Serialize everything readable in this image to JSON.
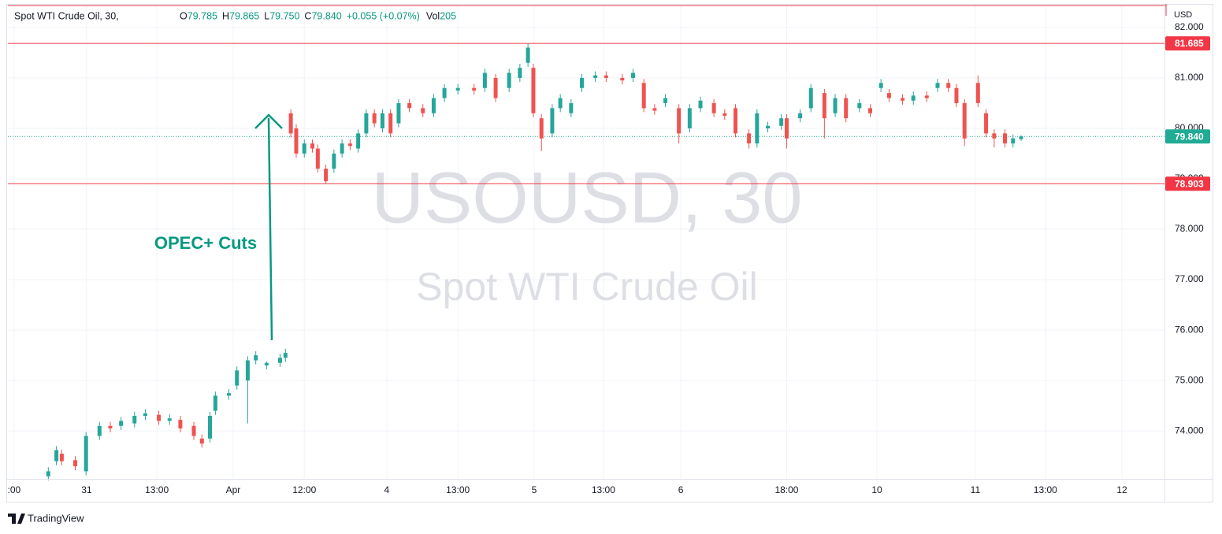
{
  "chart_data": {
    "type": "candlestick",
    "header": {
      "symbol": "Spot WTI Crude Oil, 30,",
      "fields": [
        {
          "label": "O",
          "value": "79.785"
        },
        {
          "label": "H",
          "value": "79.865"
        },
        {
          "label": "L",
          "value": "79.750"
        },
        {
          "label": "C",
          "value": "79.840"
        }
      ],
      "change": "+0.055 (+0.07%)",
      "volume_label": "Vol",
      "volume": "205"
    },
    "currency": "USD",
    "watermark": {
      "title": "USOUSD, 30",
      "subtitle": "Spot WTI Crude Oil"
    },
    "annotation": "OPEC+ Cuts",
    "branding": "TradingView",
    "up_color": "#26a69a",
    "down_color": "#ef5350",
    "grid": true,
    "xlim": [
      0,
      429.2
    ],
    "ylim": [
      73.05,
      82.42
    ],
    "xticks": [
      {
        "value": 2.3,
        "label": ":00"
      },
      {
        "value": 29.2,
        "label": "31"
      },
      {
        "value": 55.3,
        "label": "13:00"
      },
      {
        "value": 83.6,
        "label": "Apr"
      },
      {
        "value": 110,
        "label": "12:00"
      },
      {
        "value": 140.6,
        "label": "4"
      },
      {
        "value": 167,
        "label": "13:00"
      },
      {
        "value": 195.3,
        "label": "5"
      },
      {
        "value": 221,
        "label": "13:00"
      },
      {
        "value": 249.7,
        "label": "6"
      },
      {
        "value": 289,
        "label": "18:00"
      },
      {
        "value": 322.5,
        "label": "10"
      },
      {
        "value": 359,
        "label": "11"
      },
      {
        "value": 385,
        "label": "13:00"
      },
      {
        "value": 413.4,
        "label": "12"
      }
    ],
    "yticks": [
      {
        "value": 74,
        "label": "74.000"
      },
      {
        "value": 75,
        "label": "75.000"
      },
      {
        "value": 76,
        "label": "76.000"
      },
      {
        "value": 77,
        "label": "77.000"
      },
      {
        "value": 78,
        "label": "78.000"
      },
      {
        "value": 79,
        "label": "79.000"
      },
      {
        "value": 80,
        "label": "80.000"
      },
      {
        "value": 81,
        "label": "81.000"
      },
      {
        "value": 82,
        "label": "82.000"
      }
    ],
    "levels": [
      {
        "value": 81.685,
        "label": "81.685",
        "color": "#f23645",
        "style": "solid"
      },
      {
        "value": 78.903,
        "label": "78.903",
        "color": "#f23645",
        "style": "solid"
      },
      {
        "value": 79.84,
        "label": "79.840",
        "color": "#22ab94",
        "style": "dotted"
      }
    ],
    "x": [
      15,
      18,
      20,
      25,
      29,
      34,
      38,
      42,
      47,
      51,
      56,
      60,
      64,
      69,
      72,
      75,
      77,
      82,
      85,
      89,
      92,
      96,
      101,
      103,
      105,
      107,
      110,
      113,
      115,
      118,
      121,
      124,
      127,
      130,
      133,
      136,
      139,
      142,
      145,
      149,
      154,
      158,
      162,
      167,
      173,
      177,
      181,
      186,
      190,
      193,
      195,
      198,
      202,
      205,
      209,
      213,
      218,
      222,
      228,
      232,
      236,
      240,
      244,
      249,
      253,
      257,
      262,
      266,
      270,
      275,
      278,
      282,
      287,
      289,
      294,
      298,
      303,
      307,
      311,
      316,
      320,
      324,
      327,
      332,
      336,
      341,
      345,
      349,
      352,
      355,
      360,
      363,
      366,
      370,
      373,
      376
    ],
    "open": [
      73.1,
      73.4,
      73.55,
      73.42,
      73.2,
      73.9,
      74.1,
      74.1,
      74.15,
      74.3,
      74.32,
      74.2,
      74.22,
      74.1,
      73.85,
      73.85,
      74.4,
      74.7,
      74.9,
      75.0,
      75.4,
      75.3,
      75.35,
      75.45,
      80.3,
      80.0,
      79.5,
      79.7,
      79.6,
      79.2,
      79.2,
      79.5,
      79.7,
      79.6,
      79.9,
      80.3,
      80.0,
      80.3,
      80.1,
      80.5,
      80.4,
      80.3,
      80.6,
      80.75,
      80.8,
      80.8,
      81.0,
      80.8,
      81.0,
      81.3,
      81.2,
      80.2,
      79.9,
      80.4,
      80.3,
      80.8,
      81.0,
      81.05,
      81.0,
      81.0,
      80.9,
      80.4,
      80.5,
      80.4,
      80.0,
      80.4,
      80.5,
      80.3,
      80.4,
      79.9,
      79.7,
      80.0,
      80.05,
      80.2,
      80.2,
      80.4,
      80.7,
      80.3,
      80.6,
      80.4,
      80.4,
      80.8,
      80.7,
      80.6,
      80.55,
      80.65,
      80.8,
      80.9,
      80.8,
      80.5,
      80.9,
      80.3,
      79.9,
      79.9,
      79.7,
      79.785
    ],
    "high": [
      73.28,
      73.7,
      73.63,
      73.5,
      73.98,
      74.18,
      74.18,
      74.28,
      74.38,
      74.43,
      74.4,
      74.33,
      74.3,
      74.18,
      73.93,
      74.38,
      74.78,
      74.83,
      75.28,
      75.48,
      75.58,
      75.38,
      75.53,
      75.63,
      80.38,
      80.08,
      79.78,
      79.78,
      79.68,
      79.28,
      79.58,
      79.78,
      79.78,
      79.98,
      80.38,
      80.38,
      80.38,
      80.38,
      80.58,
      80.58,
      80.48,
      80.68,
      80.88,
      80.88,
      80.88,
      81.18,
      81.08,
      81.18,
      81.28,
      81.685,
      81.28,
      80.28,
      80.48,
      80.68,
      80.58,
      81.08,
      81.13,
      81.13,
      81.08,
      81.18,
      80.98,
      80.48,
      80.68,
      80.48,
      80.48,
      80.63,
      80.58,
      80.38,
      80.48,
      79.98,
      80.38,
      80.13,
      80.28,
      80.28,
      80.38,
      80.88,
      80.78,
      80.68,
      80.68,
      80.58,
      80.48,
      80.98,
      80.78,
      80.68,
      80.73,
      80.73,
      80.98,
      80.98,
      80.88,
      80.58,
      81.05,
      80.38,
      79.98,
      79.98,
      79.88,
      79.865
    ],
    "low": [
      73.02,
      73.32,
      73.32,
      73.22,
      73.12,
      73.82,
      73.97,
      74.02,
      74.07,
      74.22,
      74.12,
      74.12,
      73.97,
      73.82,
      73.67,
      73.77,
      74.32,
      74.62,
      74.82,
      74.15,
      75.32,
      75.22,
      75.27,
      75.37,
      79.82,
      79.42,
      79.42,
      79.52,
      79.12,
      78.9,
      79.12,
      79.42,
      79.57,
      79.52,
      79.82,
      80.02,
      79.92,
      79.82,
      80.02,
      80.32,
      80.22,
      80.22,
      80.52,
      80.67,
      80.67,
      80.72,
      80.52,
      80.72,
      80.92,
      81.22,
      80.22,
      79.55,
      79.82,
      80.32,
      80.22,
      80.72,
      80.92,
      80.92,
      80.87,
      80.92,
      80.32,
      80.27,
      80.42,
      79.7,
      79.92,
      80.32,
      80.22,
      80.17,
      79.82,
      79.6,
      79.62,
      79.92,
      79.97,
      79.6,
      80.12,
      80.32,
      79.8,
      80.22,
      80.12,
      80.32,
      80.22,
      80.72,
      80.52,
      80.47,
      80.47,
      80.52,
      80.72,
      80.72,
      80.42,
      79.65,
      80.42,
      79.82,
      79.62,
      79.62,
      79.62,
      79.75
    ],
    "close": [
      73.2,
      73.62,
      73.4,
      73.3,
      73.9,
      74.1,
      74.05,
      74.2,
      74.3,
      74.35,
      74.2,
      74.25,
      74.05,
      73.9,
      73.75,
      74.3,
      74.7,
      74.75,
      75.2,
      75.4,
      75.5,
      75.35,
      75.45,
      75.55,
      79.9,
      79.5,
      79.7,
      79.6,
      79.2,
      78.95,
      79.5,
      79.7,
      79.65,
      79.9,
      80.3,
      80.1,
      80.3,
      79.9,
      80.5,
      80.4,
      80.3,
      80.6,
      80.8,
      80.8,
      80.75,
      81.1,
      80.6,
      81.1,
      81.2,
      81.6,
      80.3,
      79.8,
      80.4,
      80.6,
      80.5,
      81.0,
      81.05,
      81.0,
      80.95,
      81.1,
      80.4,
      80.35,
      80.6,
      79.9,
      80.4,
      80.55,
      80.3,
      80.25,
      79.9,
      79.7,
      80.3,
      80.05,
      80.2,
      79.8,
      80.3,
      80.8,
      80.2,
      80.6,
      80.2,
      80.5,
      80.3,
      80.9,
      80.6,
      80.55,
      80.65,
      80.6,
      80.9,
      80.8,
      80.5,
      79.8,
      80.5,
      79.9,
      79.8,
      79.7,
      79.8,
      79.84
    ]
  }
}
